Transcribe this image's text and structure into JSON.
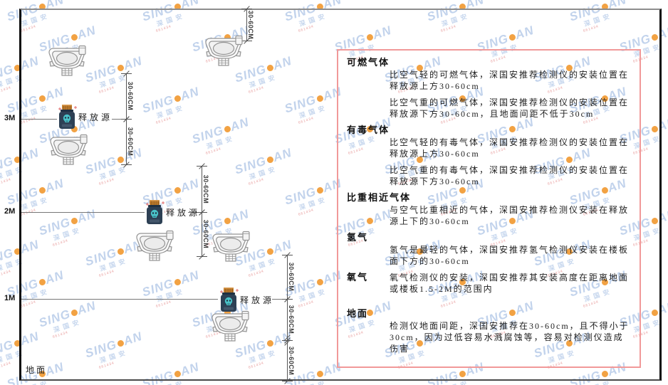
{
  "brand_watermark": {
    "left": "SING",
    "right": "AN",
    "sub": "深国安",
    "sub_red": "661434",
    "blue": "#c2d3ec",
    "orange": "#f2a243",
    "red": "#e9a0a0"
  },
  "diagram": {
    "ground_label": "地面",
    "release_source_label": "释放源",
    "dimension_label": "30-60CM",
    "wall_marks": [
      "3M",
      "2M",
      "1M"
    ]
  },
  "panel": {
    "border_color": "#f19999",
    "sections": [
      {
        "title": "可燃气体",
        "paragraphs": [
          "比空气轻的可燃气体，深国安推荐检测仪的安装位置在释放源上方30-60cm",
          "比空气重的可燃气体，深国安推荐检测仪的安装位置在释放源下方30-60cm，且地面间距不低于30cm"
        ]
      },
      {
        "title": "有毒气体",
        "paragraphs": [
          "比空气轻的有毒气体，深国安推荐检测仪的安装位置在释放源上方30-60cm",
          "比空气重的有毒气体，深国安推荐检测仪的安装位置在释放源下方30-60cm"
        ]
      },
      {
        "title": "比重相近气体",
        "paragraphs": [
          "与空气比重相近的气体，深国安推荐检测仪安装在释放源上下的30-60cm"
        ]
      },
      {
        "title": "氢气",
        "paragraphs": [
          "氢气是最轻的气体，深国安推荐氢气检测仪安装在楼板面下方的30-60cm"
        ]
      },
      {
        "title": "氧气",
        "paragraphs": [
          "氧气检测仪的安装，深国安推荐其安装高度在距离地面或楼板1.5-2M的范围内"
        ]
      },
      {
        "title": "地面",
        "paragraphs": [
          "检测仪地面间距，深国安推荐在30-60cm，且不得小于30cm，因为过低容易水溅腐蚀等，容易对检测仪造成伤害"
        ]
      }
    ]
  }
}
